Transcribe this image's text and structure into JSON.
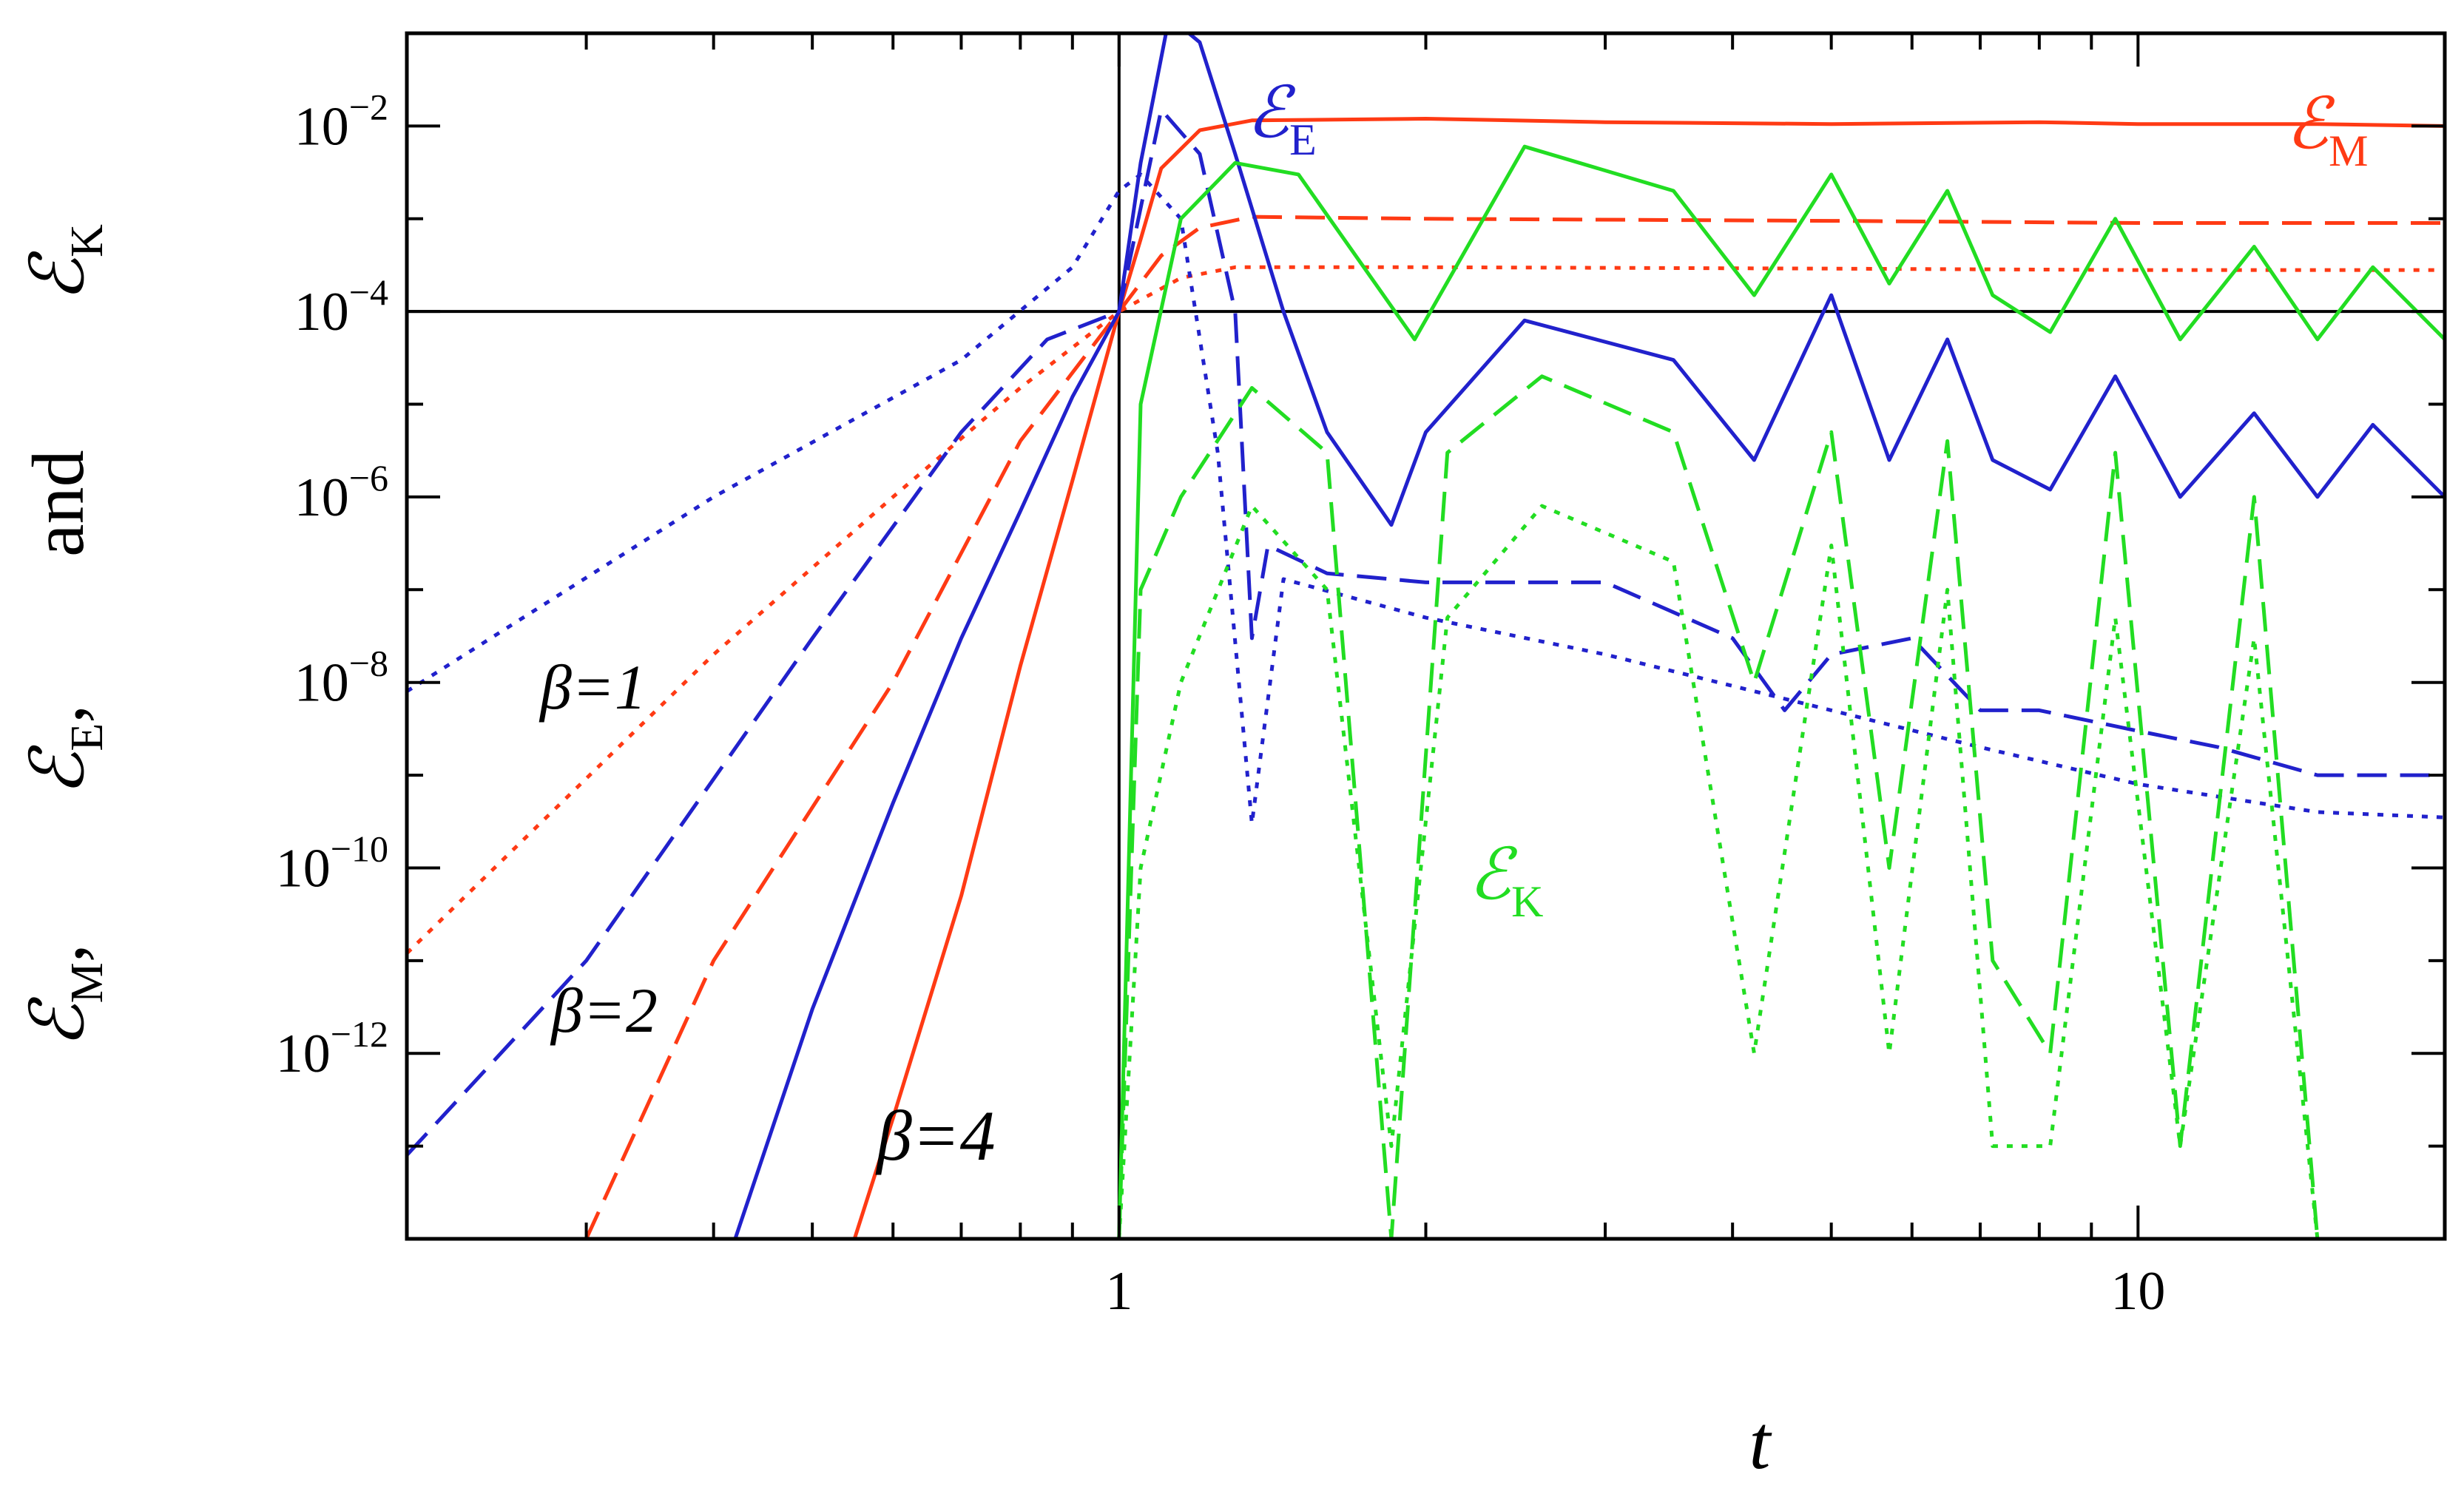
{
  "chart_data": {
    "type": "line",
    "xscale": "log",
    "yscale": "log",
    "xlim": [
      0.2,
      20
    ],
    "ylim": [
      1e-14,
      0.1
    ],
    "xlabel": "t",
    "ylabel": {
      "parts": [
        "ℰ",
        "M",
        ",",
        "ℰ",
        "E",
        ",",
        "and",
        "ℰ",
        "K"
      ]
    },
    "x_ticks": [
      {
        "value": 1,
        "label": "1"
      },
      {
        "value": 10,
        "label": "10"
      }
    ],
    "y_ticks": [
      {
        "value": 1e-12,
        "base": "10",
        "exp": "−12"
      },
      {
        "value": 1e-10,
        "base": "10",
        "exp": "−10"
      },
      {
        "value": 1e-08,
        "base": "10",
        "exp": "−8"
      },
      {
        "value": 1e-06,
        "base": "10",
        "exp": "−6"
      },
      {
        "value": 0.0001,
        "base": "10",
        "exp": "−4"
      },
      {
        "value": 0.01,
        "base": "10",
        "exp": "−2"
      }
    ],
    "reference_lines": {
      "t": 1,
      "value": 0.0001
    },
    "colors": {
      "magnetic": "#ff3a14",
      "electric": "#2121cc",
      "kinetic": "#22dd22",
      "axis": "#000000"
    },
    "linestyles": {
      "beta=4": "solid",
      "beta=2": "dashed",
      "beta=1": "dotted"
    },
    "annotations": [
      {
        "symbol": "ℰ",
        "sub": "E",
        "color": "electric"
      },
      {
        "symbol": "ℰ",
        "sub": "M",
        "color": "magnetic"
      },
      {
        "symbol": "ℰ",
        "sub": "K",
        "color": "kinetic"
      },
      {
        "text": "β=1"
      },
      {
        "text": "β=2"
      },
      {
        "text": "β=4"
      }
    ],
    "series": [
      {
        "beta": 4,
        "quantity": "magnetic",
        "color": "#ff3a14",
        "dash": "solid",
        "points": [
          [
            0.55,
            1e-14
          ],
          [
            0.6,
            2e-13
          ],
          [
            0.7,
            5e-11
          ],
          [
            0.8,
            1.5e-08
          ],
          [
            0.9,
            1.5e-06
          ],
          [
            1.0,
            0.0001
          ],
          [
            1.05,
            0.0006
          ],
          [
            1.1,
            0.0035
          ],
          [
            1.2,
            0.009
          ],
          [
            1.35,
            0.0115
          ],
          [
            2,
            0.012
          ],
          [
            3,
            0.011
          ],
          [
            5,
            0.0105
          ],
          [
            8,
            0.011
          ],
          [
            10,
            0.0105
          ],
          [
            15,
            0.0105
          ],
          [
            20,
            0.01
          ]
        ]
      },
      {
        "beta": 2,
        "quantity": "magnetic",
        "color": "#ff3a14",
        "dash": "dashed",
        "points": [
          [
            0.3,
            1e-14
          ],
          [
            0.4,
            1e-11
          ],
          [
            0.6,
            1e-08
          ],
          [
            0.8,
            4e-06
          ],
          [
            1.0,
            0.0001
          ],
          [
            1.1,
            0.0004
          ],
          [
            1.2,
            0.0008
          ],
          [
            1.35,
            0.00105
          ],
          [
            2,
            0.001
          ],
          [
            5,
            0.00095
          ],
          [
            10,
            0.0009
          ],
          [
            20,
            0.0009
          ]
        ]
      },
      {
        "beta": 1,
        "quantity": "magnetic",
        "color": "#ff3a14",
        "dash": "dotted",
        "points": [
          [
            0.2,
            1.2e-11
          ],
          [
            0.4,
            2e-08
          ],
          [
            0.6,
            1e-06
          ],
          [
            0.8,
            1.5e-05
          ],
          [
            1.0,
            0.0001
          ],
          [
            1.15,
            0.00023
          ],
          [
            1.3,
            0.0003
          ],
          [
            2,
            0.0003
          ],
          [
            5,
            0.00029
          ],
          [
            10,
            0.00028
          ],
          [
            20,
            0.00028
          ]
        ]
      },
      {
        "beta": 4,
        "quantity": "electric",
        "color": "#2121cc",
        "dash": "solid",
        "points": [
          [
            0.42,
            1e-14
          ],
          [
            0.5,
            3e-12
          ],
          [
            0.6,
            5e-10
          ],
          [
            0.7,
            3e-08
          ],
          [
            0.8,
            7e-07
          ],
          [
            0.9,
            1.2e-05
          ],
          [
            1.0,
            0.0001
          ],
          [
            1.05,
            0.004
          ],
          [
            1.12,
            0.15
          ],
          [
            1.2,
            0.08
          ],
          [
            1.3,
            0.005
          ],
          [
            1.45,
            0.0001
          ],
          [
            1.6,
            5e-06
          ],
          [
            1.85,
            5e-07
          ],
          [
            2,
            5e-06
          ],
          [
            2.5,
            8e-05
          ],
          [
            3.5,
            3e-05
          ],
          [
            4.2,
            2.5e-06
          ],
          [
            5,
            0.00015
          ],
          [
            5.7,
            2.5e-06
          ],
          [
            6.5,
            5e-05
          ],
          [
            7.2,
            2.5e-06
          ],
          [
            8.2,
            1.2e-06
          ],
          [
            9.5,
            2e-05
          ],
          [
            11,
            1e-06
          ],
          [
            13,
            8e-06
          ],
          [
            15,
            1e-06
          ],
          [
            17,
            6e-06
          ],
          [
            20,
            1e-06
          ]
        ]
      },
      {
        "beta": 2,
        "quantity": "electric",
        "color": "#2121cc",
        "dash": "dashed",
        "points": [
          [
            0.2,
            8e-14
          ],
          [
            0.3,
            1e-11
          ],
          [
            0.5,
            3e-08
          ],
          [
            0.7,
            5e-06
          ],
          [
            0.85,
            5e-05
          ],
          [
            1.0,
            0.0001
          ],
          [
            1.1,
            0.015
          ],
          [
            1.2,
            0.005
          ],
          [
            1.3,
            0.0001
          ],
          [
            1.35,
            3e-08
          ],
          [
            1.4,
            3e-07
          ],
          [
            1.6,
            1.5e-07
          ],
          [
            2,
            1.2e-07
          ],
          [
            3,
            1.2e-07
          ],
          [
            4,
            3e-08
          ],
          [
            4.5,
            5e-09
          ],
          [
            5,
            2e-08
          ],
          [
            6,
            3e-08
          ],
          [
            7,
            5e-09
          ],
          [
            8,
            5e-09
          ],
          [
            10,
            3e-09
          ],
          [
            12,
            2e-09
          ],
          [
            15,
            1e-09
          ],
          [
            20,
            1e-09
          ]
        ]
      },
      {
        "beta": 1,
        "quantity": "electric",
        "color": "#2121cc",
        "dash": "dotted",
        "points": [
          [
            0.2,
            8e-09
          ],
          [
            0.4,
            1e-06
          ],
          [
            0.7,
            3e-05
          ],
          [
            0.9,
            0.0003
          ],
          [
            1.0,
            0.002
          ],
          [
            1.05,
            0.003
          ],
          [
            1.15,
            0.001
          ],
          [
            1.25,
            3e-06
          ],
          [
            1.35,
            3e-10
          ],
          [
            1.45,
            1.3e-07
          ],
          [
            2,
            5e-08
          ],
          [
            3,
            2e-08
          ],
          [
            5,
            5e-09
          ],
          [
            7,
            2e-09
          ],
          [
            10,
            8e-10
          ],
          [
            15,
            4e-10
          ],
          [
            20,
            3.5e-10
          ]
        ]
      },
      {
        "beta": 4,
        "quantity": "kinetic",
        "color": "#22dd22",
        "dash": "solid",
        "points": [
          [
            1.0,
            1e-14
          ],
          [
            1.05,
            1e-05
          ],
          [
            1.15,
            0.001
          ],
          [
            1.3,
            0.004
          ],
          [
            1.5,
            0.003
          ],
          [
            1.95,
            5e-05
          ],
          [
            2.5,
            0.006
          ],
          [
            3.5,
            0.002
          ],
          [
            4.2,
            0.00015
          ],
          [
            5,
            0.003
          ],
          [
            5.7,
            0.0002
          ],
          [
            6.5,
            0.002
          ],
          [
            7.2,
            0.00015
          ],
          [
            8.2,
            6e-05
          ],
          [
            9.5,
            0.001
          ],
          [
            11,
            5e-05
          ],
          [
            13,
            0.0005
          ],
          [
            15,
            5e-05
          ],
          [
            17,
            0.0003
          ],
          [
            20,
            5e-05
          ]
        ]
      },
      {
        "beta": 2,
        "quantity": "kinetic",
        "color": "#22dd22",
        "dash": "dashed",
        "points": [
          [
            1.0,
            1e-14
          ],
          [
            1.05,
            1e-07
          ],
          [
            1.15,
            1e-06
          ],
          [
            1.35,
            1.5e-05
          ],
          [
            1.6,
            3e-06
          ],
          [
            1.85,
            1e-14
          ],
          [
            2.1,
            3e-06
          ],
          [
            2.6,
            2e-05
          ],
          [
            3.5,
            5e-06
          ],
          [
            4.2,
            1e-08
          ],
          [
            5,
            5e-06
          ],
          [
            5.7,
            1e-10
          ],
          [
            6.5,
            4e-06
          ],
          [
            7.2,
            1e-11
          ],
          [
            8.2,
            1e-12
          ],
          [
            9.5,
            3e-06
          ],
          [
            11,
            1e-13
          ],
          [
            13,
            1e-06
          ],
          [
            15,
            1e-14
          ],
          [
            20,
            1e-14
          ]
        ]
      },
      {
        "beta": 1,
        "quantity": "kinetic",
        "color": "#22dd22",
        "dash": "dotted",
        "points": [
          [
            1.0,
            1e-14
          ],
          [
            1.05,
            1e-10
          ],
          [
            1.15,
            1e-08
          ],
          [
            1.35,
            8e-07
          ],
          [
            1.6,
            1e-07
          ],
          [
            1.85,
            1e-13
          ],
          [
            2.1,
            5e-08
          ],
          [
            2.6,
            8e-07
          ],
          [
            3.5,
            2e-07
          ],
          [
            4.2,
            1e-12
          ],
          [
            5,
            3e-07
          ],
          [
            5.7,
            1e-12
          ],
          [
            6.5,
            1e-07
          ],
          [
            7.2,
            1e-13
          ],
          [
            8.2,
            1e-13
          ],
          [
            9.5,
            5e-08
          ],
          [
            11,
            1e-13
          ],
          [
            13,
            3e-08
          ],
          [
            15,
            1e-14
          ],
          [
            20,
            1e-14
          ]
        ]
      }
    ]
  }
}
